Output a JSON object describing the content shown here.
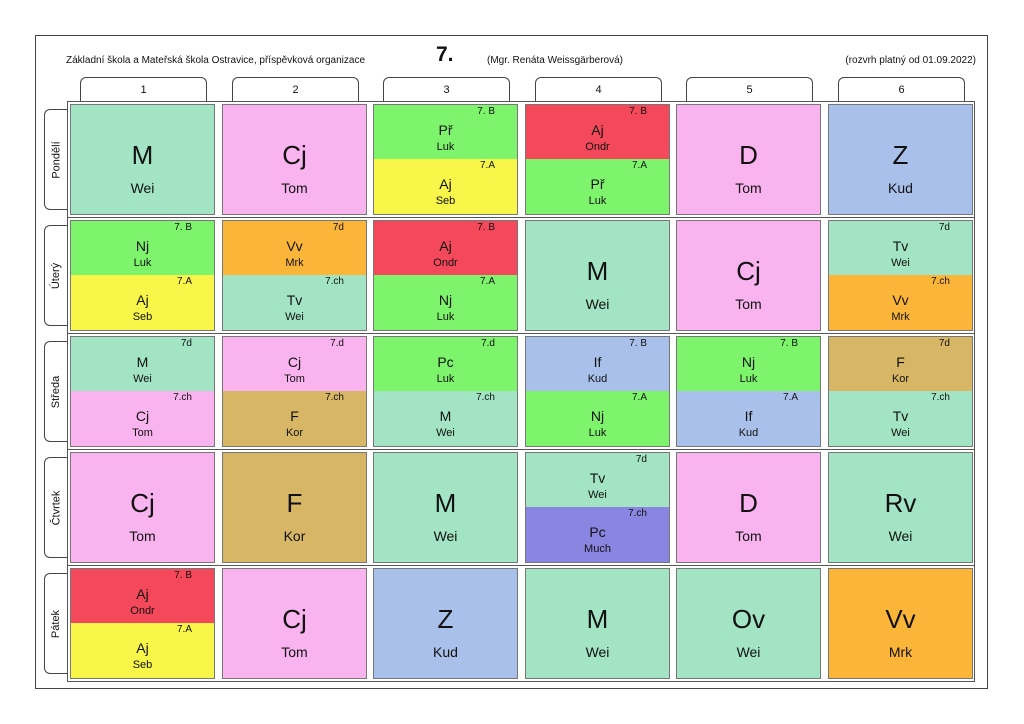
{
  "header": {
    "school": "Základní škola a Mateřská škola Ostravice, příspěvková organizace",
    "class": "7.",
    "teacher": "(Mgr. Renáta Weissgärberová)",
    "valid": "(rozvrh platný od 01.09.2022)"
  },
  "periods": [
    "1",
    "2",
    "3",
    "4",
    "5",
    "6"
  ],
  "colors": {
    "M": "#a3e4c4",
    "Cj": "#f9b3ee",
    "Pr": "#7ef36c",
    "Aj": "#f3495a",
    "AjA": "#f8f648",
    "D": "#f9b3ee",
    "Z": "#a9c1ea",
    "Vv": "#fbb63a",
    "F": "#d7b665",
    "Pc": "#8a85e0",
    "If": "#a9c1ea",
    "Rv": "#a3e4c4",
    "Ov": "#a3e4c4",
    "Tv": "#a3e4c4",
    "Nj": "#7ef36c"
  },
  "days": [
    {
      "name": "Pondělí",
      "cells": [
        {
          "subject": "M",
          "teacher": "Wei",
          "color": "#a3e4c4"
        },
        {
          "subject": "Cj",
          "teacher": "Tom",
          "color": "#f9b3ee"
        },
        {
          "split": [
            {
              "group": "7. B",
              "subject": "Př",
              "teacher": "Luk",
              "color": "#7ef36c"
            },
            {
              "group": "7.A",
              "subject": "Aj",
              "teacher": "Seb",
              "color": "#f8f648"
            }
          ]
        },
        {
          "split": [
            {
              "group": "7. B",
              "subject": "Aj",
              "teacher": "Ondr",
              "color": "#f3495a"
            },
            {
              "group": "7.A",
              "subject": "Př",
              "teacher": "Luk",
              "color": "#7ef36c"
            }
          ]
        },
        {
          "subject": "D",
          "teacher": "Tom",
          "color": "#f9b3ee"
        },
        {
          "subject": "Z",
          "teacher": "Kud",
          "color": "#a9c1ea"
        }
      ]
    },
    {
      "name": "Úterý",
      "cells": [
        {
          "split": [
            {
              "group": "7. B",
              "subject": "Nj",
              "teacher": "Luk",
              "color": "#7ef36c"
            },
            {
              "group": "7.A",
              "subject": "Aj",
              "teacher": "Seb",
              "color": "#f8f648"
            }
          ]
        },
        {
          "split": [
            {
              "group": "7d",
              "subject": "Vv",
              "teacher": "Mrk",
              "color": "#fbb63a"
            },
            {
              "group": "7.ch",
              "subject": "Tv",
              "teacher": "Wei",
              "color": "#a3e4c4"
            }
          ]
        },
        {
          "split": [
            {
              "group": "7. B",
              "subject": "Aj",
              "teacher": "Ondr",
              "color": "#f3495a"
            },
            {
              "group": "7.A",
              "subject": "Nj",
              "teacher": "Luk",
              "color": "#7ef36c"
            }
          ]
        },
        {
          "subject": "M",
          "teacher": "Wei",
          "color": "#a3e4c4"
        },
        {
          "subject": "Cj",
          "teacher": "Tom",
          "color": "#f9b3ee"
        },
        {
          "split": [
            {
              "group": "7d",
              "subject": "Tv",
              "teacher": "Wei",
              "color": "#a3e4c4"
            },
            {
              "group": "7.ch",
              "subject": "Vv",
              "teacher": "Mrk",
              "color": "#fbb63a"
            }
          ]
        }
      ]
    },
    {
      "name": "Středa",
      "cells": [
        {
          "split": [
            {
              "group": "7d",
              "subject": "M",
              "teacher": "Wei",
              "color": "#a3e4c4"
            },
            {
              "group": "7.ch",
              "subject": "Cj",
              "teacher": "Tom",
              "color": "#f9b3ee"
            }
          ]
        },
        {
          "split": [
            {
              "group": "7.d",
              "subject": "Cj",
              "teacher": "Tom",
              "color": "#f9b3ee"
            },
            {
              "group": "7.ch",
              "subject": "F",
              "teacher": "Kor",
              "color": "#d7b665"
            }
          ]
        },
        {
          "split": [
            {
              "group": "7.d",
              "subject": "Pc",
              "teacher": "Luk",
              "color": "#7ef36c"
            },
            {
              "group": "7.ch",
              "subject": "M",
              "teacher": "Wei",
              "color": "#a3e4c4"
            }
          ]
        },
        {
          "split": [
            {
              "group": "7. B",
              "subject": "If",
              "teacher": "Kud",
              "color": "#a9c1ea"
            },
            {
              "group": "7.A",
              "subject": "Nj",
              "teacher": "Luk",
              "color": "#7ef36c"
            }
          ]
        },
        {
          "split": [
            {
              "group": "7. B",
              "subject": "Nj",
              "teacher": "Luk",
              "color": "#7ef36c"
            },
            {
              "group": "7.A",
              "subject": "If",
              "teacher": "Kud",
              "color": "#a9c1ea"
            }
          ]
        },
        {
          "split": [
            {
              "group": "7d",
              "subject": "F",
              "teacher": "Kor",
              "color": "#d7b665"
            },
            {
              "group": "7.ch",
              "subject": "Tv",
              "teacher": "Wei",
              "color": "#a3e4c4"
            }
          ]
        }
      ]
    },
    {
      "name": "Čtvrtek",
      "cells": [
        {
          "subject": "Cj",
          "teacher": "Tom",
          "color": "#f9b3ee"
        },
        {
          "subject": "F",
          "teacher": "Kor",
          "color": "#d7b665"
        },
        {
          "subject": "M",
          "teacher": "Wei",
          "color": "#a3e4c4"
        },
        {
          "split": [
            {
              "group": "7d",
              "subject": "Tv",
              "teacher": "Wei",
              "color": "#a3e4c4"
            },
            {
              "group": "7.ch",
              "subject": "Pc",
              "teacher": "Much",
              "color": "#8a85e0"
            }
          ]
        },
        {
          "subject": "D",
          "teacher": "Tom",
          "color": "#f9b3ee"
        },
        {
          "subject": "Rv",
          "teacher": "Wei",
          "color": "#a3e4c4"
        }
      ]
    },
    {
      "name": "Pátek",
      "cells": [
        {
          "split": [
            {
              "group": "7. B",
              "subject": "Aj",
              "teacher": "Ondr",
              "color": "#f3495a"
            },
            {
              "group": "7.A",
              "subject": "Aj",
              "teacher": "Seb",
              "color": "#f8f648"
            }
          ]
        },
        {
          "subject": "Cj",
          "teacher": "Tom",
          "color": "#f9b3ee"
        },
        {
          "subject": "Z",
          "teacher": "Kud",
          "color": "#a9c1ea"
        },
        {
          "subject": "M",
          "teacher": "Wei",
          "color": "#a3e4c4"
        },
        {
          "subject": "Ov",
          "teacher": "Wei",
          "color": "#a3e4c4"
        },
        {
          "subject": "Vv",
          "teacher": "Mrk",
          "color": "#fbb63a"
        }
      ]
    }
  ]
}
